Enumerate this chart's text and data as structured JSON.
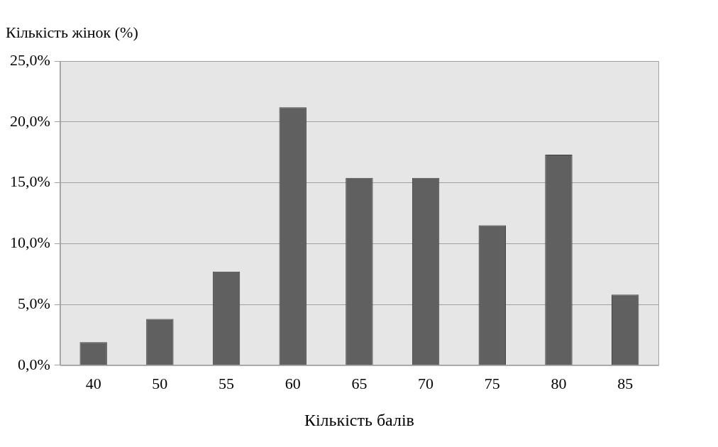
{
  "chart_data": {
    "type": "bar",
    "ylabel": "Кількість жінок (%)",
    "xlabel": "Кількість балів",
    "categories": [
      "40",
      "50",
      "55",
      "60",
      "65",
      "70",
      "75",
      "80",
      "85"
    ],
    "values": [
      1.9,
      3.8,
      7.7,
      21.2,
      15.4,
      15.4,
      11.5,
      17.3,
      5.8
    ],
    "color": "#606060",
    "ylim": [
      0,
      25
    ],
    "yticks": [
      {
        "value": 0,
        "label": "0,0%"
      },
      {
        "value": 5,
        "label": "5,0%"
      },
      {
        "value": 10,
        "label": "10,0%"
      },
      {
        "value": 15,
        "label": "15,0%"
      },
      {
        "value": 20,
        "label": "20,0%"
      },
      {
        "value": 25,
        "label": "25,0%"
      }
    ],
    "grid": "y",
    "legend": false
  }
}
